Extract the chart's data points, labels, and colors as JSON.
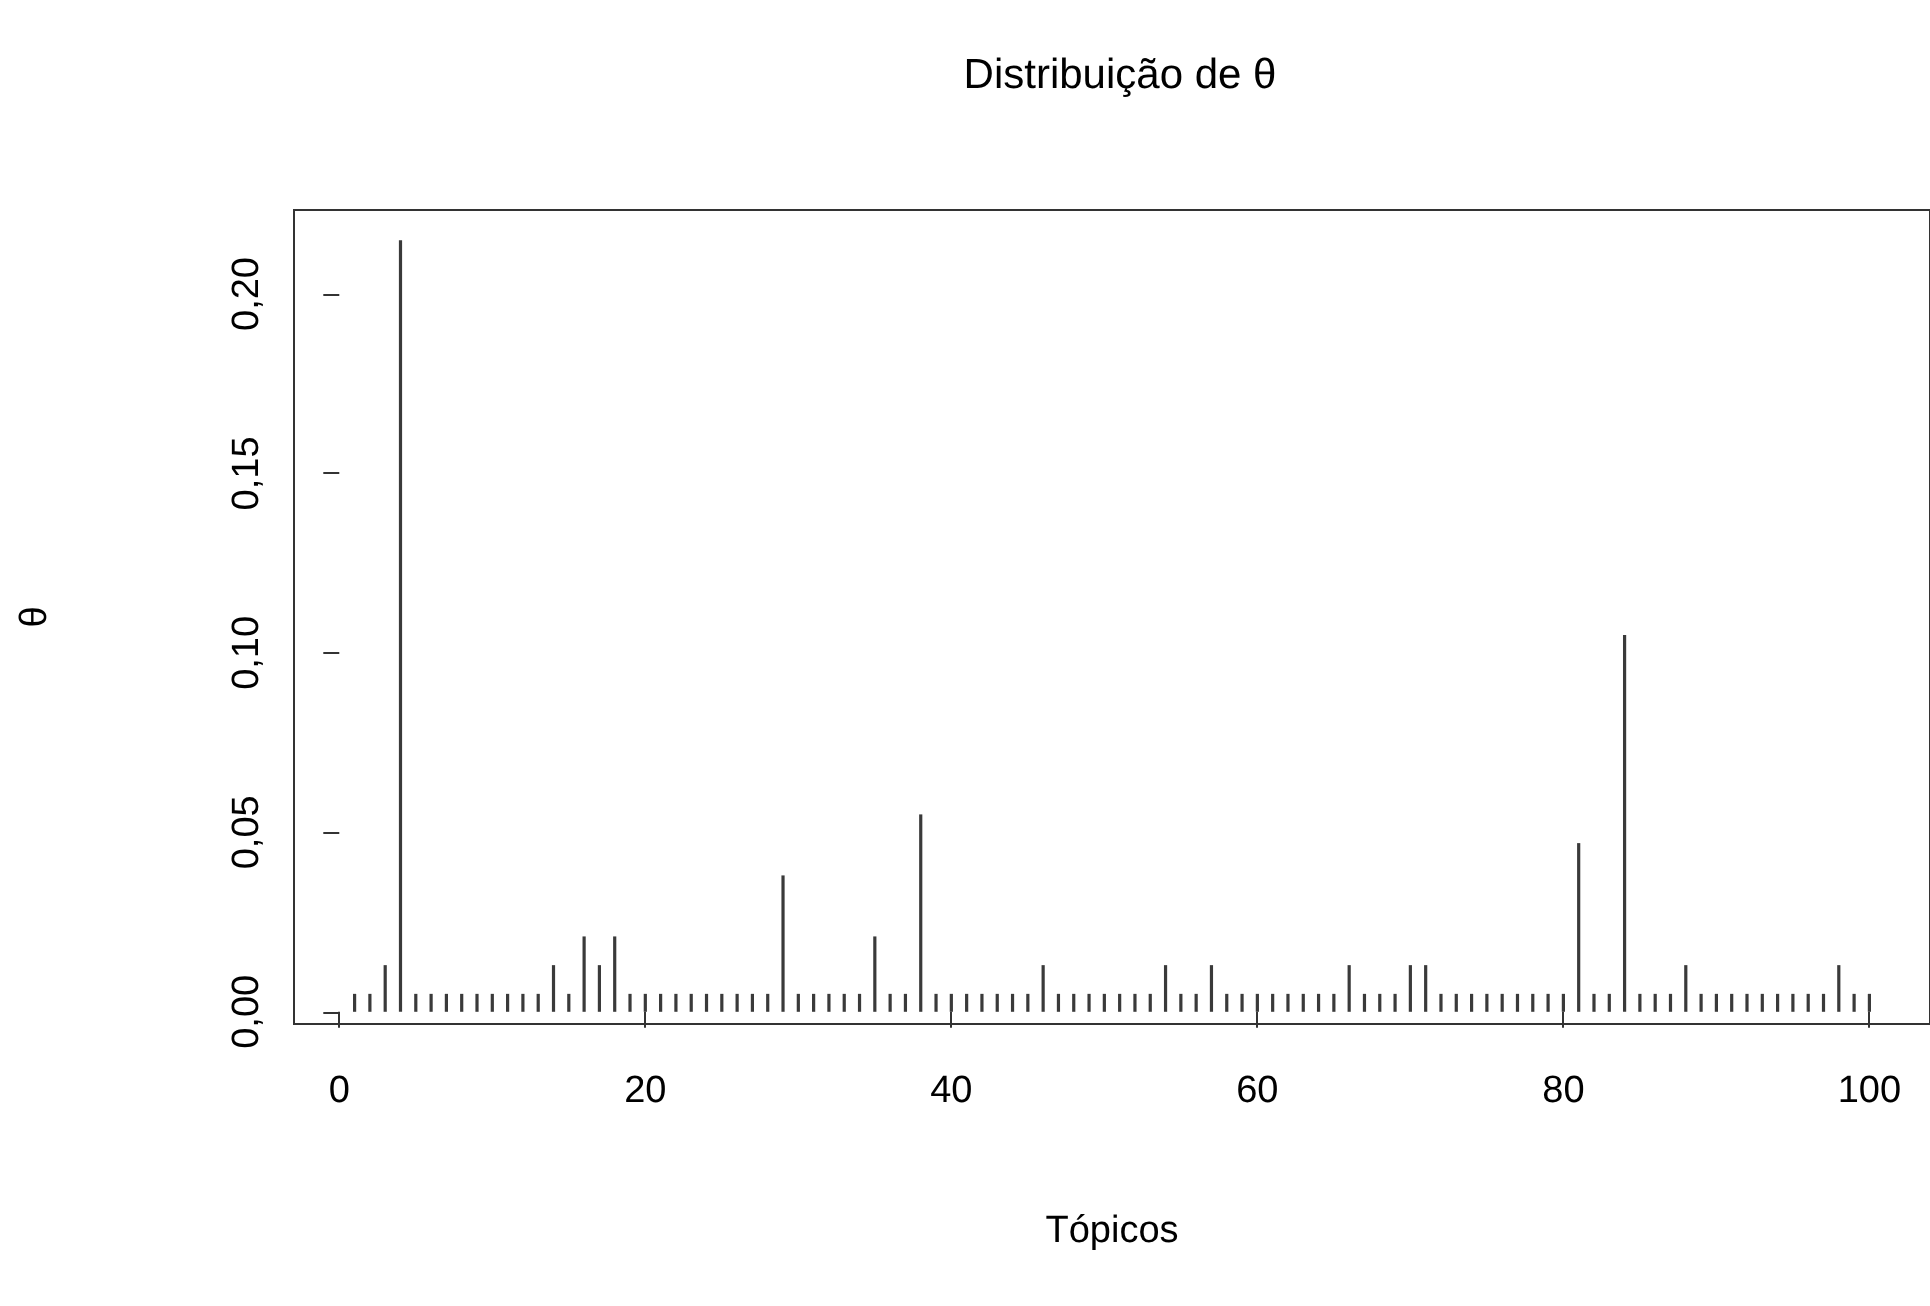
{
  "chart_data": {
    "type": "bar",
    "title": "Distribuição de θ",
    "xlabel": "Tópicos",
    "ylabel": "θ",
    "color": "#3a3a3a",
    "x": [
      1,
      2,
      3,
      4,
      5,
      6,
      7,
      8,
      9,
      10,
      11,
      12,
      13,
      14,
      15,
      16,
      17,
      18,
      19,
      20,
      21,
      22,
      23,
      24,
      25,
      26,
      27,
      28,
      29,
      30,
      31,
      32,
      33,
      34,
      35,
      36,
      37,
      38,
      39,
      40,
      41,
      42,
      43,
      44,
      45,
      46,
      47,
      48,
      49,
      50,
      51,
      52,
      53,
      54,
      55,
      56,
      57,
      58,
      59,
      60,
      61,
      62,
      63,
      64,
      65,
      66,
      67,
      68,
      69,
      70,
      71,
      72,
      73,
      74,
      75,
      76,
      77,
      78,
      79,
      80,
      81,
      82,
      83,
      84,
      85,
      86,
      87,
      88,
      89,
      90,
      91,
      92,
      93,
      94,
      95,
      96,
      97,
      98,
      99,
      100
    ],
    "values": [
      0.005,
      0.005,
      0.013,
      0.215,
      0.005,
      0.005,
      0.005,
      0.005,
      0.005,
      0.005,
      0.005,
      0.005,
      0.005,
      0.013,
      0.005,
      0.021,
      0.013,
      0.021,
      0.005,
      0.005,
      0.005,
      0.005,
      0.005,
      0.005,
      0.005,
      0.005,
      0.005,
      0.005,
      0.038,
      0.005,
      0.005,
      0.005,
      0.005,
      0.005,
      0.021,
      0.005,
      0.005,
      0.055,
      0.005,
      0.005,
      0.005,
      0.005,
      0.005,
      0.005,
      0.005,
      0.013,
      0.005,
      0.005,
      0.005,
      0.005,
      0.005,
      0.005,
      0.005,
      0.013,
      0.005,
      0.005,
      0.013,
      0.005,
      0.005,
      0.005,
      0.005,
      0.005,
      0.005,
      0.005,
      0.005,
      0.013,
      0.005,
      0.005,
      0.005,
      0.013,
      0.013,
      0.005,
      0.005,
      0.005,
      0.005,
      0.005,
      0.005,
      0.005,
      0.005,
      0.005,
      0.047,
      0.005,
      0.005,
      0.105,
      0.005,
      0.005,
      0.005,
      0.013,
      0.005,
      0.005,
      0.005,
      0.005,
      0.005,
      0.005,
      0.005,
      0.005,
      0.005,
      0.013,
      0.005,
      0.005
    ],
    "xlim": [
      -2.96,
      103.96
    ],
    "xticks": [
      0,
      20,
      40,
      60,
      80,
      100
    ],
    "ylim": [
      -0.0034,
      0.2234
    ],
    "yticks": [
      {
        "value": 0,
        "label": "0,00"
      },
      {
        "value": 0.05,
        "label": "0,05"
      },
      {
        "value": 0.1,
        "label": "0,10"
      },
      {
        "value": 0.15,
        "label": "0,15"
      },
      {
        "value": 0.2,
        "label": "0,20"
      }
    ]
  }
}
